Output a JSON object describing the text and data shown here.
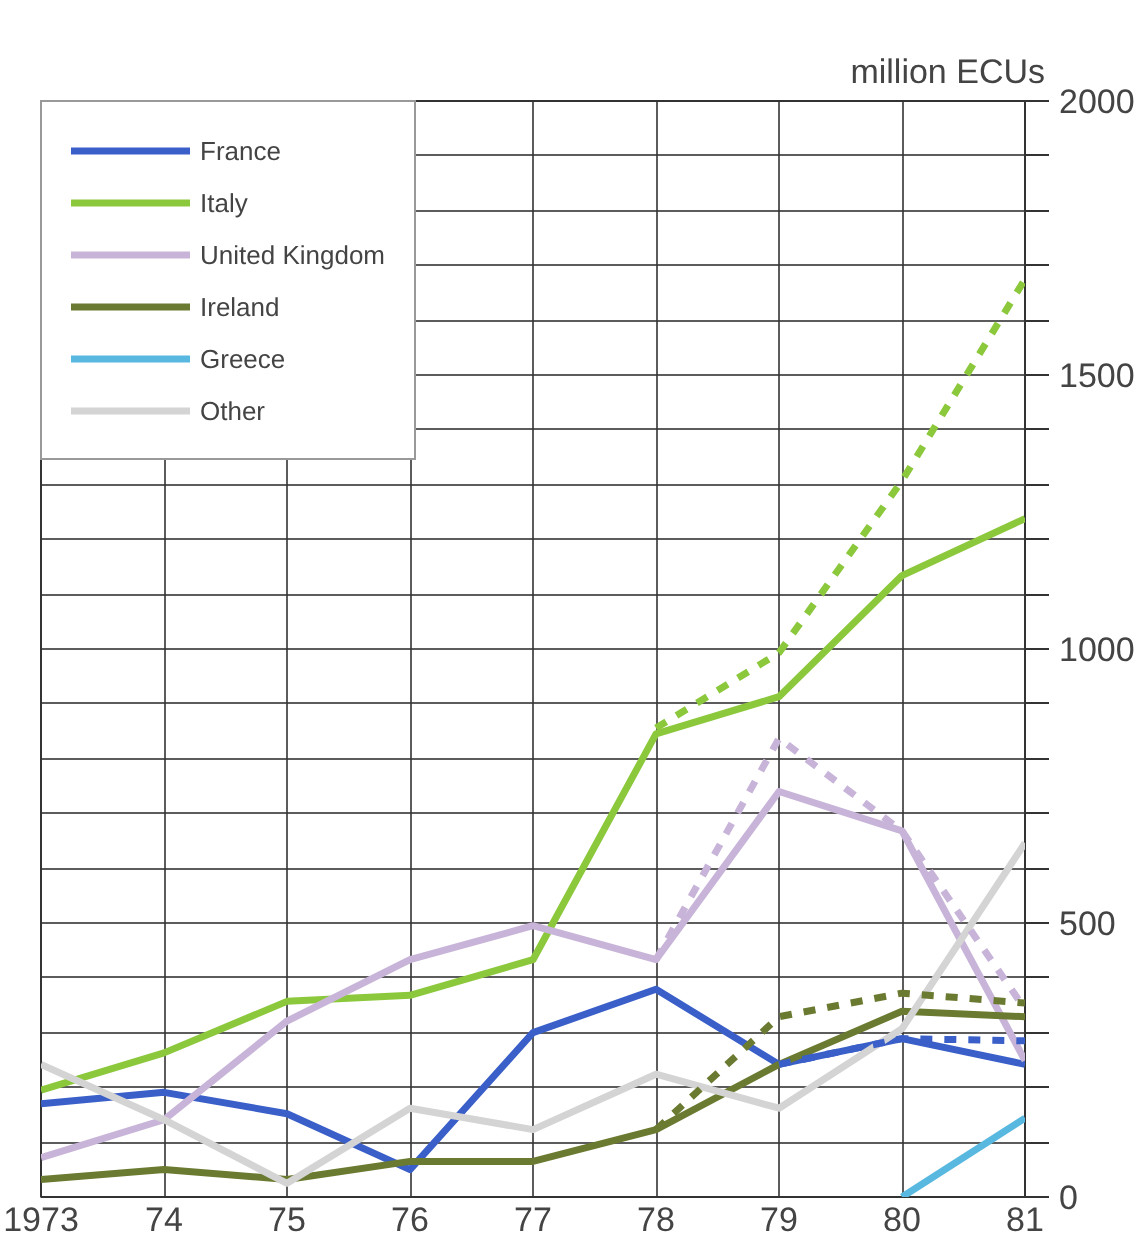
{
  "chart_data": {
    "type": "line",
    "ylabel": "million ECUs",
    "x": [
      1973,
      1974,
      1975,
      1976,
      1977,
      1978,
      1979,
      1980,
      1981
    ],
    "xlim": [
      1973,
      1981
    ],
    "xticks": [
      1973,
      {
        "value": 1974,
        "label": "74"
      },
      {
        "value": 1975,
        "label": "75"
      },
      {
        "value": 1976,
        "label": "76"
      },
      {
        "value": 1977,
        "label": "77"
      },
      {
        "value": 1978,
        "label": "78"
      },
      {
        "value": 1979,
        "label": "79"
      },
      {
        "value": 1980,
        "label": "80"
      },
      {
        "value": 1981,
        "label": "81"
      }
    ],
    "ylim": [
      0,
      2000
    ],
    "yticks": [
      0,
      {
        "value": 100,
        "label": null
      },
      {
        "value": 200,
        "label": null
      },
      {
        "value": 300,
        "label": null
      },
      {
        "value": 400,
        "label": null
      },
      500,
      {
        "value": 600,
        "label": null
      },
      {
        "value": 700,
        "label": null
      },
      {
        "value": 800,
        "label": null
      },
      {
        "value": 900,
        "label": null
      },
      1000,
      {
        "value": 1100,
        "label": null
      },
      {
        "value": 1200,
        "label": null
      },
      {
        "value": 1300,
        "label": null
      },
      {
        "value": 1400,
        "label": null
      },
      1500,
      {
        "value": 1600,
        "label": null
      },
      {
        "value": 1700,
        "label": null
      },
      {
        "value": 1800,
        "label": null
      },
      {
        "value": 1900,
        "label": null
      },
      2000
    ],
    "grid": true,
    "legend": "top left",
    "line_style": "solid",
    "series": [
      {
        "name": "France",
        "color": "#3a5fc8",
        "values": [
          170,
          191,
          152,
          50,
          300,
          379,
          242,
          289,
          242
        ]
      },
      {
        "name": "Italy",
        "color": "#8cc83c",
        "values": [
          195,
          263,
          357,
          368,
          433,
          845,
          913,
          1134,
          1238
        ]
      },
      {
        "name": "United Kingdom",
        "color": "#c8b4d8",
        "values": [
          72,
          141,
          321,
          433,
          495,
          433,
          740,
          668,
          249
        ]
      },
      {
        "name": "Ireland",
        "color": "#6a7a30",
        "values": [
          32,
          50,
          32,
          65,
          65,
          123,
          242,
          339,
          329
        ]
      },
      {
        "name": "Greece",
        "color": "#58b8e0",
        "x": [
          1980,
          1981
        ],
        "values": [
          0,
          144
        ]
      },
      {
        "name": "Other",
        "color": "#d4d4d4",
        "values": [
          242,
          141,
          25,
          162,
          123,
          224,
          162,
          307,
          646
        ]
      },
      {
        "color": "#3a5fc8",
        "line_style": "dashed",
        "x": [
          1979,
          1980,
          1981
        ],
        "values": [
          242,
          289,
          285
        ]
      },
      {
        "color": "#8cc83c",
        "line_style": "dashed",
        "x": [
          1978,
          1979,
          1980,
          1981
        ],
        "values": [
          856,
          993,
          1307,
          1675
        ]
      },
      {
        "color": "#c8b4d8",
        "line_style": "dashed",
        "x": [
          1978,
          1979,
          1980,
          1981
        ],
        "values": [
          433,
          837,
          668,
          343
        ]
      },
      {
        "color": "#6a7a30",
        "line_style": "dashed",
        "x": [
          1978,
          1979,
          1980,
          1981
        ],
        "values": [
          123,
          329,
          372,
          354
        ]
      }
    ]
  }
}
